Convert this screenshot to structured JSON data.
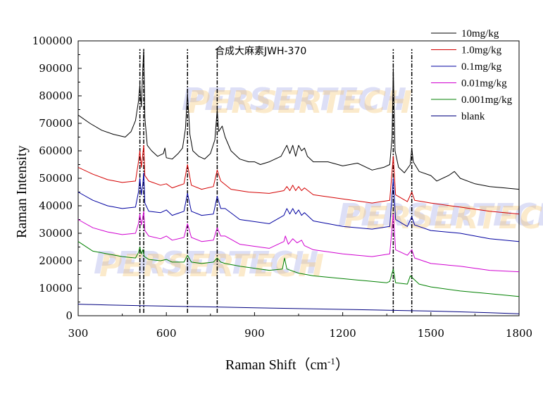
{
  "chart_data": {
    "type": "line",
    "title": "合成大麻素JWH-370",
    "xlabel": "Raman Shift（cm",
    "xlabel_sup": "-1",
    "xlabel_close": "）",
    "ylabel": "Raman Intensity",
    "xlim": [
      300,
      1800
    ],
    "ylim": [
      0,
      100000
    ],
    "xticks": [
      300,
      600,
      900,
      1200,
      1500,
      1800
    ],
    "yticks": [
      0,
      10000,
      20000,
      30000,
      40000,
      50000,
      60000,
      70000,
      80000,
      90000,
      100000
    ],
    "watermark": "PERSERTECH",
    "peak_markers": [
      510,
      523,
      672,
      773,
      1372,
      1435
    ],
    "series": [
      {
        "name": "10mg/kg",
        "color": "#000000",
        "x": [
          300,
          340,
          380,
          420,
          460,
          480,
          495,
          505,
          510,
          515,
          520,
          523,
          527,
          535,
          550,
          570,
          590,
          595,
          600,
          620,
          640,
          655,
          665,
          672,
          680,
          690,
          710,
          730,
          750,
          765,
          773,
          778,
          790,
          800,
          820,
          850,
          880,
          900,
          920,
          950,
          990,
          1000,
          1010,
          1020,
          1030,
          1040,
          1050,
          1060,
          1070,
          1080,
          1100,
          1150,
          1200,
          1250,
          1300,
          1340,
          1360,
          1368,
          1372,
          1378,
          1390,
          1410,
          1430,
          1435,
          1440,
          1460,
          1500,
          1520,
          1560,
          1580,
          1600,
          1650,
          1700,
          1750,
          1800
        ],
        "y": [
          73000,
          70000,
          67500,
          66000,
          65000,
          67000,
          71000,
          78000,
          84000,
          76000,
          90000,
          97000,
          72000,
          62000,
          60000,
          58000,
          59000,
          61000,
          57500,
          57000,
          59000,
          61000,
          68000,
          81000,
          66000,
          60000,
          58000,
          57000,
          59000,
          64000,
          75000,
          67000,
          69000,
          65000,
          60000,
          57000,
          56000,
          56000,
          55000,
          56000,
          58000,
          60000,
          62000,
          59000,
          62000,
          58000,
          62000,
          60000,
          61000,
          58000,
          56000,
          56000,
          54500,
          55500,
          53000,
          54000,
          55000,
          65000,
          90000,
          60000,
          54000,
          52000,
          55000,
          61000,
          56000,
          52500,
          51000,
          49000,
          51000,
          52500,
          50000,
          48000,
          47000,
          46500,
          46000
        ]
      },
      {
        "name": "1.0mg/kg",
        "color": "#d40000",
        "x": [
          300,
          350,
          400,
          450,
          495,
          505,
          510,
          515,
          520,
          523,
          527,
          540,
          580,
          600,
          620,
          660,
          672,
          685,
          720,
          760,
          773,
          785,
          820,
          880,
          950,
          1000,
          1010,
          1020,
          1030,
          1040,
          1050,
          1060,
          1070,
          1100,
          1200,
          1300,
          1360,
          1372,
          1380,
          1420,
          1435,
          1445,
          1500,
          1600,
          1700,
          1800
        ],
        "y": [
          54000,
          51500,
          49500,
          48500,
          49000,
          56000,
          60000,
          54000,
          59000,
          62000,
          51000,
          49000,
          47500,
          48000,
          46500,
          48000,
          55000,
          47500,
          46000,
          47000,
          53000,
          49000,
          46000,
          45000,
          44500,
          45500,
          47000,
          45500,
          47500,
          45500,
          47000,
          45500,
          46500,
          44000,
          42500,
          41000,
          42000,
          58000,
          44000,
          41500,
          45000,
          42000,
          41000,
          39500,
          38000,
          37000
        ]
      },
      {
        "name": "0.1mg/kg",
        "color": "#0000a0",
        "x": [
          300,
          350,
          400,
          450,
          495,
          505,
          510,
          515,
          520,
          523,
          527,
          540,
          580,
          600,
          620,
          660,
          672,
          685,
          720,
          760,
          773,
          785,
          800,
          850,
          950,
          1000,
          1010,
          1020,
          1030,
          1040,
          1050,
          1060,
          1070,
          1100,
          1200,
          1300,
          1360,
          1372,
          1380,
          1420,
          1435,
          1445,
          1500,
          1600,
          1700,
          1800
        ],
        "y": [
          45000,
          42000,
          40000,
          39000,
          39500,
          45000,
          50000,
          44000,
          48000,
          52000,
          41000,
          38000,
          37500,
          38500,
          36500,
          38000,
          44500,
          38000,
          36500,
          37000,
          43500,
          39000,
          39000,
          35000,
          33500,
          36500,
          39000,
          37000,
          39000,
          37000,
          38500,
          36500,
          37500,
          34500,
          32500,
          31500,
          32500,
          50000,
          35000,
          32500,
          36000,
          33000,
          31000,
          30000,
          28000,
          27000
        ]
      },
      {
        "name": "0.01mg/kg",
        "color": "#d000d0",
        "x": [
          300,
          350,
          400,
          450,
          495,
          505,
          510,
          515,
          520,
          523,
          527,
          540,
          580,
          600,
          620,
          660,
          672,
          685,
          720,
          760,
          773,
          785,
          800,
          850,
          950,
          1000,
          1005,
          1015,
          1030,
          1045,
          1060,
          1070,
          1100,
          1200,
          1300,
          1360,
          1372,
          1380,
          1420,
          1435,
          1445,
          1500,
          1600,
          1700,
          1800
        ],
        "y": [
          35000,
          32000,
          30500,
          29500,
          30000,
          33500,
          37000,
          33000,
          36000,
          38000,
          31000,
          29000,
          28000,
          29000,
          27500,
          28500,
          33500,
          28500,
          27000,
          27500,
          32000,
          29000,
          29000,
          26000,
          24500,
          27000,
          29000,
          26000,
          28000,
          26500,
          27500,
          25500,
          24000,
          22500,
          21500,
          22500,
          37000,
          24000,
          22000,
          24000,
          21000,
          19000,
          18000,
          16500,
          16000
        ]
      },
      {
        "name": "0.001mg/kg",
        "color": "#008000",
        "x": [
          300,
          350,
          400,
          450,
          495,
          505,
          510,
          515,
          520,
          525,
          540,
          580,
          600,
          620,
          660,
          672,
          685,
          720,
          760,
          773,
          785,
          800,
          850,
          950,
          995,
          1002,
          1010,
          1050,
          1100,
          1200,
          1300,
          1350,
          1360,
          1372,
          1380,
          1420,
          1430,
          1440,
          1460,
          1500,
          1600,
          1700,
          1800
        ],
        "y": [
          27000,
          23500,
          22500,
          21500,
          21000,
          23000,
          25000,
          22500,
          24000,
          21500,
          20500,
          20000,
          20500,
          19500,
          19500,
          22000,
          19500,
          19000,
          19500,
          21000,
          19500,
          19000,
          18000,
          16500,
          17000,
          21000,
          17000,
          15500,
          14500,
          13500,
          12500,
          12000,
          12500,
          17000,
          12000,
          11500,
          14500,
          13500,
          11500,
          10500,
          9000,
          8000,
          7000
        ]
      },
      {
        "name": "blank",
        "color": "#000080",
        "x": [
          300,
          400,
          500,
          600,
          700,
          800,
          900,
          1000,
          1100,
          1200,
          1300,
          1400,
          1500,
          1600,
          1700,
          1800
        ],
        "y": [
          4200,
          3900,
          3700,
          3500,
          3300,
          3100,
          2900,
          2700,
          2500,
          2300,
          2100,
          1900,
          1700,
          1400,
          1100,
          700
        ]
      }
    ]
  }
}
